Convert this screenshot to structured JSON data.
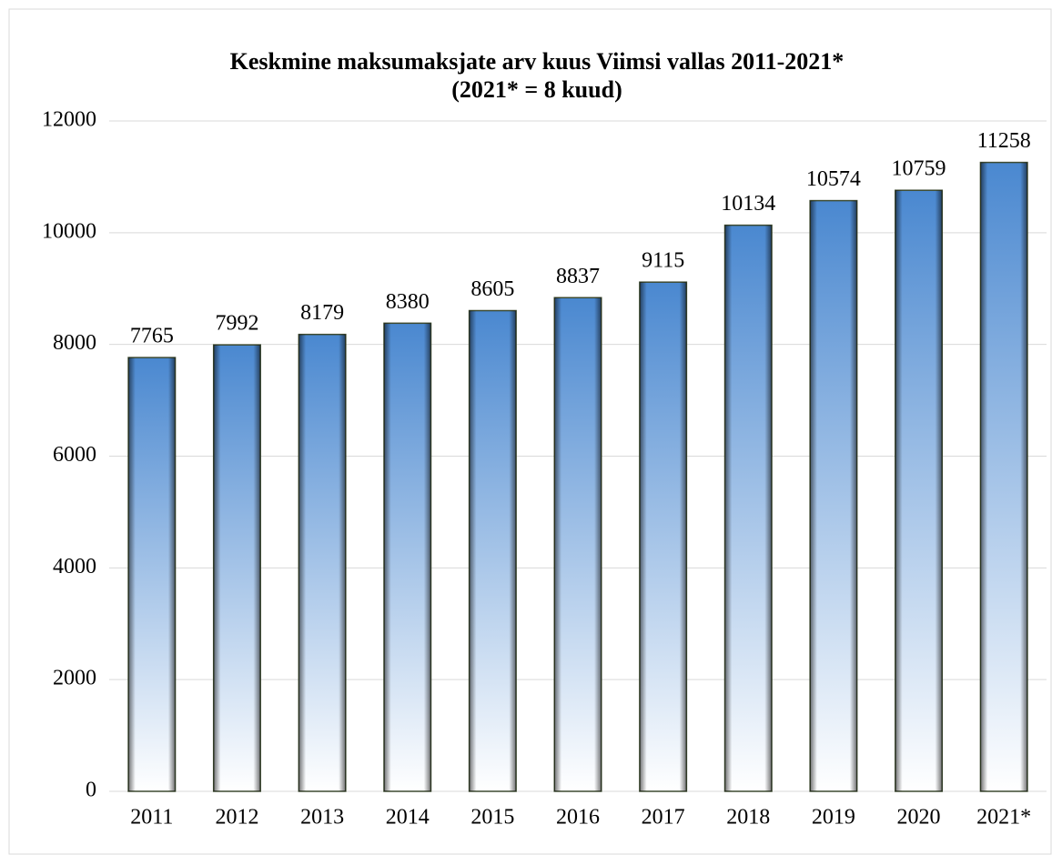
{
  "chart_data": {
    "type": "bar",
    "title": "Keskmine maksumaksjate arv kuus Viimsi vallas 2011-2021*",
    "subtitle": "(2021* = 8 kuud)",
    "categories": [
      "2011",
      "2012",
      "2013",
      "2014",
      "2015",
      "2016",
      "2017",
      "2018",
      "2019",
      "2020",
      "2021*"
    ],
    "values": [
      7765,
      7992,
      8179,
      8380,
      8605,
      8837,
      9115,
      10134,
      10574,
      10759,
      11258
    ],
    "color": "#4a88d0",
    "ylim": [
      0,
      12000
    ],
    "yticks": [
      0,
      2000,
      4000,
      6000,
      8000,
      10000,
      12000
    ],
    "grid": true
  }
}
